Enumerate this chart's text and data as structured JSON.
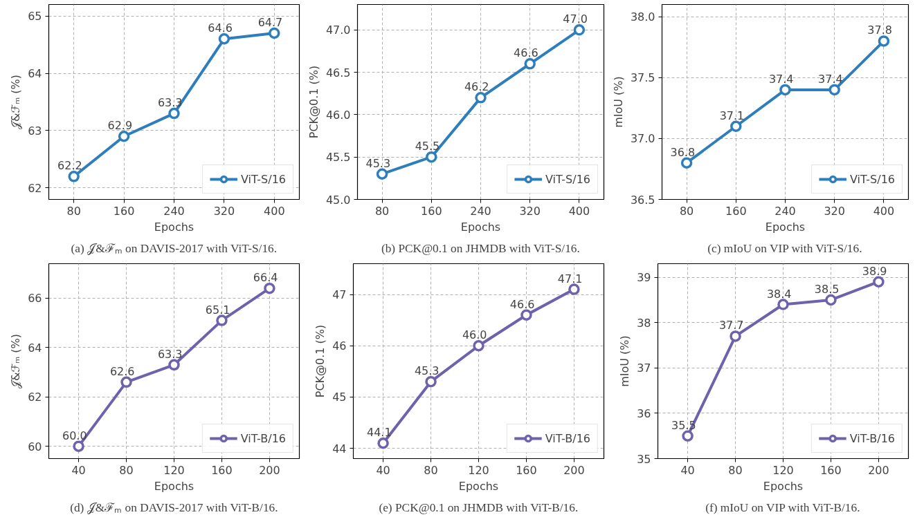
{
  "chart_data": [
    {
      "type": "line",
      "x": [
        80,
        160,
        240,
        320,
        400
      ],
      "series": [
        {
          "name": "ViT-S/16",
          "color": "#2f7ebc",
          "values": [
            62.2,
            62.9,
            63.3,
            64.6,
            64.7
          ],
          "value_labels": [
            "62.2",
            "62.9",
            "63.3",
            "64.6",
            "64.7"
          ]
        }
      ],
      "xlabel": "Epochs",
      "ylabel": "𝒥&ℱₘ (%)",
      "xlim": [
        40,
        440
      ],
      "xticks": [
        80,
        160,
        240,
        320,
        400
      ],
      "ylim": [
        61.8,
        65.2
      ],
      "yticks": [
        62,
        63,
        64,
        65
      ],
      "grid": true,
      "legend": "bottom right",
      "marker": "circle",
      "line_style": "solid",
      "annotations": [
        "(a) 𝒥&ℱₘ on DAVIS-2017 with ViT-S/16."
      ]
    },
    {
      "type": "line",
      "x": [
        80,
        160,
        240,
        320,
        400
      ],
      "series": [
        {
          "name": "ViT-S/16",
          "color": "#2f7ebc",
          "values": [
            45.3,
            45.5,
            46.2,
            46.6,
            47.0
          ],
          "value_labels": [
            "45.3",
            "45.5",
            "46.2",
            "46.6",
            "47.0"
          ]
        }
      ],
      "xlabel": "Epochs",
      "ylabel": "PCK@0.1 (%)",
      "xlim": [
        40,
        440
      ],
      "xticks": [
        80,
        160,
        240,
        320,
        400
      ],
      "ylim": [
        45.0,
        47.3
      ],
      "yticks": [
        {
          "value": 45,
          "label": "45.0"
        },
        45.5,
        {
          "value": 46,
          "label": "46.0"
        },
        46.5,
        {
          "value": 47,
          "label": "47.0"
        }
      ],
      "grid": true,
      "legend": "bottom right",
      "marker": "circle",
      "line_style": "solid",
      "annotations": [
        "(b) PCK@0.1 on JHMDB with ViT-S/16."
      ]
    },
    {
      "type": "line",
      "x": [
        80,
        160,
        240,
        320,
        400
      ],
      "series": [
        {
          "name": "ViT-S/16",
          "color": "#2f7ebc",
          "values": [
            36.8,
            37.1,
            37.4,
            37.4,
            37.8
          ],
          "value_labels": [
            "36.8",
            "37.1",
            "37.4",
            "37.4",
            "37.8"
          ]
        }
      ],
      "xlabel": "Epochs",
      "ylabel": "mIoU (%)",
      "xlim": [
        40,
        440
      ],
      "xticks": [
        80,
        160,
        240,
        320,
        400
      ],
      "ylim": [
        36.5,
        38.1
      ],
      "yticks": [
        36.5,
        {
          "value": 37,
          "label": "37.0"
        },
        37.5,
        {
          "value": 38,
          "label": "38.0"
        }
      ],
      "grid": true,
      "legend": "bottom right",
      "marker": "circle",
      "line_style": "solid",
      "annotations": [
        "(c) mIoU on VIP with ViT-S/16."
      ]
    },
    {
      "type": "line",
      "x": [
        40,
        80,
        120,
        160,
        200
      ],
      "series": [
        {
          "name": "ViT-B/16",
          "color": "#6e62ad",
          "values": [
            60.0,
            62.6,
            63.3,
            65.1,
            66.4
          ],
          "value_labels": [
            "60.0",
            "62.6",
            "63.3",
            "65.1",
            "66.4"
          ]
        }
      ],
      "xlabel": "Epochs",
      "ylabel": "𝒥&ℱₘ (%)",
      "xlim": [
        15,
        225
      ],
      "xticks": [
        40,
        80,
        120,
        160,
        200
      ],
      "ylim": [
        59.5,
        67.4
      ],
      "yticks": [
        60,
        62,
        64,
        66
      ],
      "grid": true,
      "legend": "bottom right",
      "marker": "circle",
      "line_style": "solid",
      "annotations": [
        "(d) 𝒥&ℱₘ on DAVIS-2017 with ViT-B/16."
      ]
    },
    {
      "type": "line",
      "x": [
        40,
        80,
        120,
        160,
        200
      ],
      "series": [
        {
          "name": "ViT-B/16",
          "color": "#6e62ad",
          "values": [
            44.1,
            45.3,
            46.0,
            46.6,
            47.1
          ],
          "value_labels": [
            "44.1",
            "45.3",
            "46.0",
            "46.6",
            "47.1"
          ]
        }
      ],
      "xlabel": "Epochs",
      "ylabel": "PCK@0.1 (%)",
      "xlim": [
        15,
        225
      ],
      "xticks": [
        40,
        80,
        120,
        160,
        200
      ],
      "ylim": [
        43.8,
        47.6
      ],
      "yticks": [
        44,
        45,
        46,
        47
      ],
      "grid": true,
      "legend": "bottom right",
      "marker": "circle",
      "line_style": "solid",
      "annotations": [
        "(e) PCK@0.1 on JHMDB with ViT-B/16."
      ]
    },
    {
      "type": "line",
      "x": [
        40,
        80,
        120,
        160,
        200
      ],
      "series": [
        {
          "name": "ViT-B/16",
          "color": "#6e62ad",
          "values": [
            35.5,
            37.7,
            38.4,
            38.5,
            38.9
          ],
          "value_labels": [
            "35.5",
            "37.7",
            "38.4",
            "38.5",
            "38.9"
          ]
        }
      ],
      "xlabel": "Epochs",
      "ylabel": "mIoU (%)",
      "xlim": [
        15,
        225
      ],
      "xticks": [
        40,
        80,
        120,
        160,
        200
      ],
      "ylim": [
        35.0,
        39.3
      ],
      "yticks": [
        35,
        36,
        37,
        38,
        39
      ],
      "grid": true,
      "legend": "bottom right",
      "marker": "circle",
      "line_style": "solid",
      "annotations": [
        "(f) mIoU on VIP with ViT-B/16."
      ]
    }
  ]
}
